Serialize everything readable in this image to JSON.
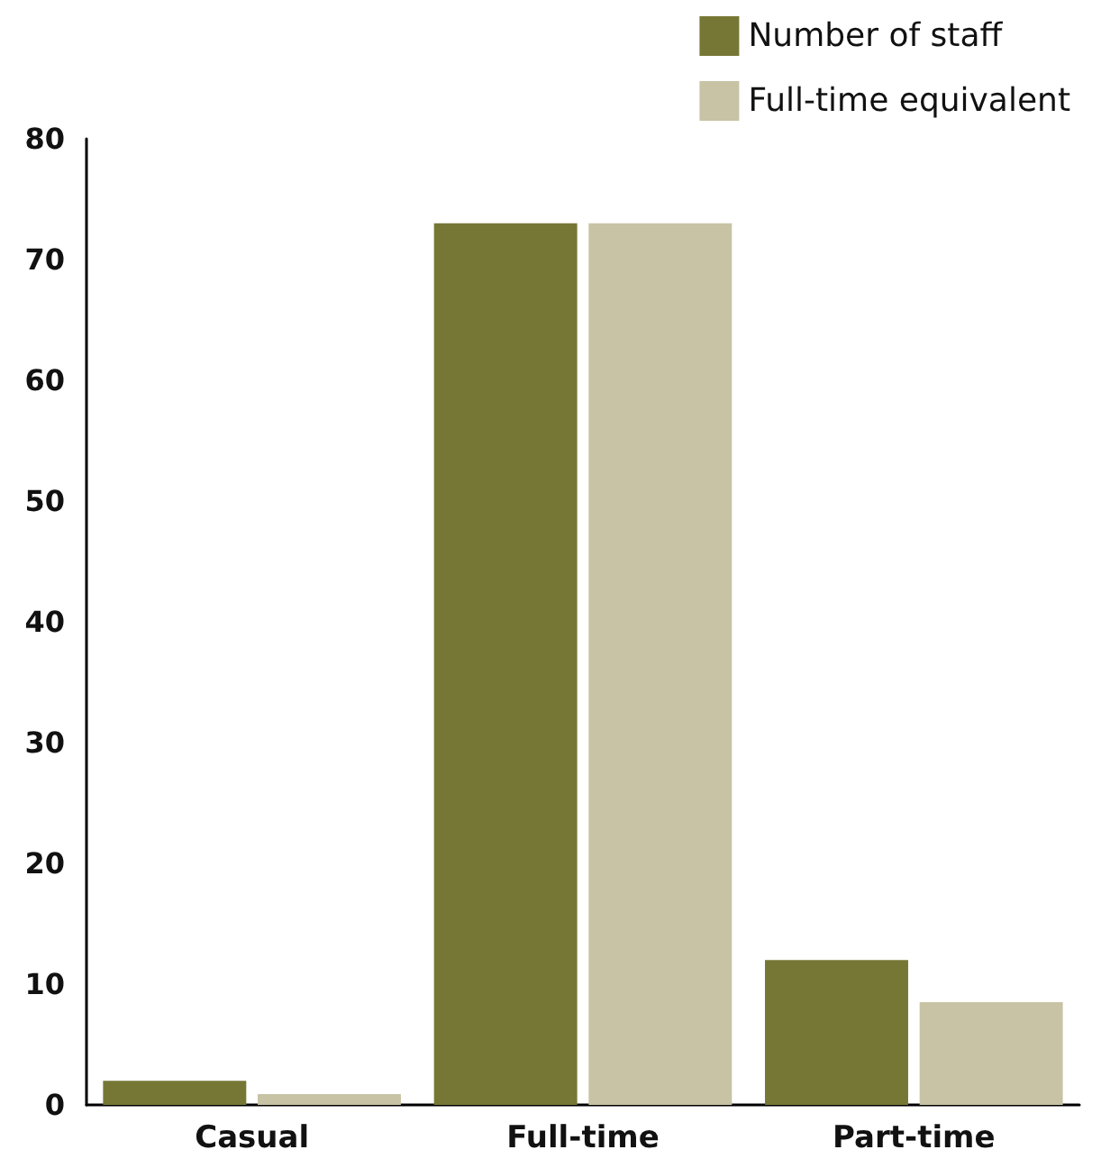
{
  "chart_data": {
    "type": "bar",
    "categories": [
      "Casual",
      "Full-time",
      "Part-time"
    ],
    "series": [
      {
        "name": "Number of staff",
        "color": "#767735",
        "values": [
          2,
          73,
          12
        ]
      },
      {
        "name": "Full-time equivalent",
        "color": "#c7c3a4",
        "values": [
          0.9,
          73,
          8.5
        ]
      }
    ],
    "ylim": [
      0,
      80
    ],
    "yticks": [
      0,
      10,
      20,
      30,
      40,
      50,
      60,
      70,
      80
    ],
    "grid": false,
    "legend": "top right"
  }
}
